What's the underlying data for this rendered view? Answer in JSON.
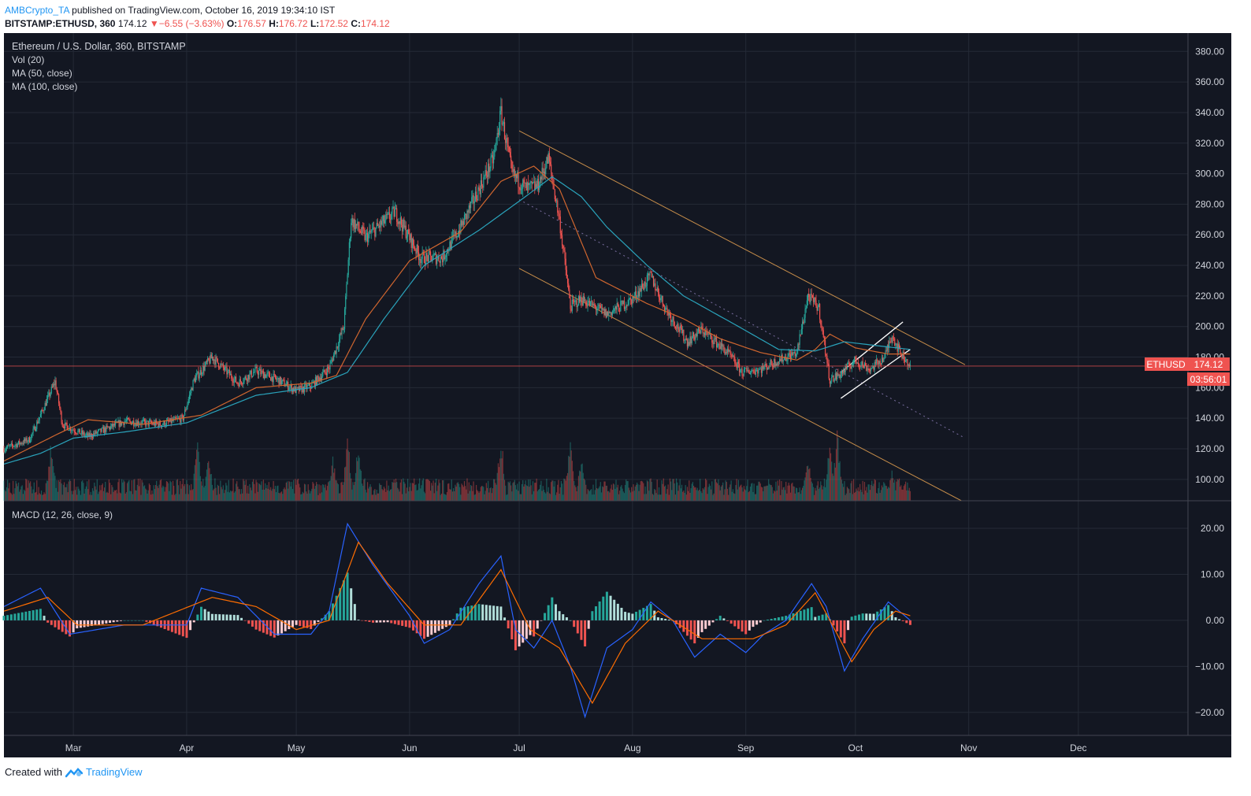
{
  "header": {
    "author": "AMBCrypto_TA",
    "published_text": "published on TradingView.com, October 16, 2019 19:34:10 IST",
    "symbol": "BITSTAMP:ETHUSD, 360",
    "last": "174.12",
    "change_arrow": "▼",
    "change": "−6.55 (−3.63%)",
    "o_label": "O:",
    "o": "176.57",
    "h_label": "H:",
    "h": "176.72",
    "l_label": "L:",
    "l": "172.52",
    "c_label": "C:",
    "c": "174.12"
  },
  "legend": {
    "title": "Ethereum / U.S. Dollar, 360, BITSTAMP",
    "vol": "Vol (20)",
    "ma50": "MA (50, close)",
    "ma100": "MA (100, close)",
    "macd": "MACD (12, 26, close, 9)"
  },
  "price_tag": {
    "symbol": "ETHUSD",
    "price": "174.12",
    "countdown": "03:56:01"
  },
  "footer": {
    "created_with": "Created with",
    "brand": "TradingView"
  },
  "colors": {
    "background": "#131722",
    "grid": "#242a36",
    "up": "#26a69a",
    "down": "#ef5350",
    "ma50": "#d0662f",
    "ma100": "#2aa3bb",
    "channel": "#c68d4a",
    "flag": "#ffffff",
    "macd": "#2962ff",
    "signal": "#ff6d00",
    "price_line": "#ef5350",
    "axis_text": "#d1d4dc"
  },
  "chart_data": [
    {
      "type": "candlestick",
      "title": "Ethereum / U.S. Dollar, 360, BITSTAMP",
      "x_tick_labels": [
        "Mar",
        "Apr",
        "May",
        "Jun",
        "Jul",
        "Aug",
        "Sep",
        "Oct",
        "Nov",
        "Dec"
      ],
      "y_ticks": [
        "100.00",
        "120.00",
        "140.00",
        "160.00",
        "180.00",
        "200.00",
        "220.00",
        "240.00",
        "260.00",
        "280.00",
        "300.00",
        "320.00",
        "340.00",
        "360.00",
        "380.00"
      ],
      "ylim": [
        86,
        392
      ],
      "xlim": [
        "2019-02-10",
        "2019-12-31"
      ],
      "price_path": [
        [
          "2019-02-10",
          120
        ],
        [
          "2019-02-17",
          126
        ],
        [
          "2019-02-20",
          142
        ],
        [
          "2019-02-24",
          164
        ],
        [
          "2019-02-26",
          136
        ],
        [
          "2019-03-05",
          128
        ],
        [
          "2019-03-15",
          138
        ],
        [
          "2019-03-25",
          136
        ],
        [
          "2019-03-31",
          140
        ],
        [
          "2019-04-03",
          165
        ],
        [
          "2019-04-08",
          180
        ],
        [
          "2019-04-15",
          163
        ],
        [
          "2019-04-20",
          171
        ],
        [
          "2019-04-26",
          165
        ],
        [
          "2019-05-01",
          158
        ],
        [
          "2019-05-05",
          161
        ],
        [
          "2019-05-10",
          173
        ],
        [
          "2019-05-14",
          200
        ],
        [
          "2019-05-16",
          270
        ],
        [
          "2019-05-20",
          258
        ],
        [
          "2019-05-28",
          275
        ],
        [
          "2019-06-04",
          245
        ],
        [
          "2019-06-10",
          245
        ],
        [
          "2019-06-15",
          265
        ],
        [
          "2019-06-20",
          290
        ],
        [
          "2019-06-24",
          310
        ],
        [
          "2019-06-26",
          340
        ],
        [
          "2019-06-29",
          300
        ],
        [
          "2019-07-03",
          290
        ],
        [
          "2019-07-06",
          292
        ],
        [
          "2019-07-09",
          310
        ],
        [
          "2019-07-12",
          270
        ],
        [
          "2019-07-15",
          213
        ],
        [
          "2019-07-18",
          218
        ],
        [
          "2019-07-25",
          208
        ],
        [
          "2019-08-01",
          218
        ],
        [
          "2019-08-06",
          233
        ],
        [
          "2019-08-10",
          212
        ],
        [
          "2019-08-16",
          190
        ],
        [
          "2019-08-20",
          198
        ],
        [
          "2019-08-27",
          183
        ],
        [
          "2019-08-31",
          170
        ],
        [
          "2019-09-05",
          172
        ],
        [
          "2019-09-10",
          178
        ],
        [
          "2019-09-15",
          183
        ],
        [
          "2019-09-18",
          220
        ],
        [
          "2019-09-21",
          212
        ],
        [
          "2019-09-24",
          165
        ],
        [
          "2019-09-27",
          169
        ],
        [
          "2019-10-01",
          178
        ],
        [
          "2019-10-05",
          172
        ],
        [
          "2019-10-09",
          180
        ],
        [
          "2019-10-11",
          195
        ],
        [
          "2019-10-13",
          184
        ],
        [
          "2019-10-16",
          174.12
        ]
      ],
      "ma_50_path": [
        [
          "2019-02-10",
          112
        ],
        [
          "2019-02-25",
          130
        ],
        [
          "2019-03-05",
          139
        ],
        [
          "2019-03-20",
          136
        ],
        [
          "2019-04-05",
          142
        ],
        [
          "2019-04-20",
          160
        ],
        [
          "2019-05-05",
          163
        ],
        [
          "2019-05-12",
          168
        ],
        [
          "2019-05-20",
          205
        ],
        [
          "2019-06-01",
          243
        ],
        [
          "2019-06-15",
          262
        ],
        [
          "2019-06-26",
          295
        ],
        [
          "2019-07-05",
          305
        ],
        [
          "2019-07-12",
          290
        ],
        [
          "2019-07-22",
          232
        ],
        [
          "2019-08-05",
          215
        ],
        [
          "2019-08-15",
          205
        ],
        [
          "2019-08-25",
          192
        ],
        [
          "2019-09-05",
          183
        ],
        [
          "2019-09-15",
          178
        ],
        [
          "2019-09-20",
          185
        ],
        [
          "2019-09-24",
          195
        ],
        [
          "2019-10-01",
          186
        ],
        [
          "2019-10-10",
          182
        ],
        [
          "2019-10-16",
          182
        ]
      ],
      "ma_100_path": [
        [
          "2019-02-10",
          110
        ],
        [
          "2019-02-20",
          117
        ],
        [
          "2019-03-01",
          127
        ],
        [
          "2019-03-15",
          131
        ],
        [
          "2019-04-01",
          137
        ],
        [
          "2019-04-20",
          155
        ],
        [
          "2019-05-05",
          160
        ],
        [
          "2019-05-15",
          170
        ],
        [
          "2019-05-25",
          205
        ],
        [
          "2019-06-05",
          240
        ],
        [
          "2019-06-20",
          263
        ],
        [
          "2019-07-01",
          282
        ],
        [
          "2019-07-10",
          298
        ],
        [
          "2019-07-18",
          285
        ],
        [
          "2019-07-25",
          265
        ],
        [
          "2019-08-05",
          240
        ],
        [
          "2019-08-15",
          220
        ],
        [
          "2019-08-30",
          200
        ],
        [
          "2019-09-10",
          185
        ],
        [
          "2019-09-20",
          184
        ],
        [
          "2019-09-28",
          190
        ],
        [
          "2019-10-05",
          188
        ],
        [
          "2019-10-16",
          185
        ]
      ],
      "last_price": 174.12,
      "annotations": [
        {
          "kind": "channel_top",
          "from": [
            "2019-07-01",
            328
          ],
          "to": [
            "2019-10-31",
            175
          ]
        },
        {
          "kind": "channel_bottom",
          "from": [
            "2019-07-01",
            238
          ],
          "to": [
            "2019-10-30",
            86
          ]
        },
        {
          "kind": "channel_mid_dotted",
          "from": [
            "2019-07-01",
            283
          ],
          "to": [
            "2019-10-31",
            127
          ]
        },
        {
          "kind": "flag_top",
          "from": [
            "2019-09-27",
            170
          ],
          "to": [
            "2019-10-14",
            203
          ]
        },
        {
          "kind": "flag_bottom",
          "from": [
            "2019-09-27",
            153
          ],
          "to": [
            "2019-10-16",
            185
          ]
        }
      ]
    },
    {
      "type": "bar",
      "title": "Vol (20)",
      "note": "volume histogram, relative heights",
      "spikes": [
        [
          "2019-02-23",
          0.9
        ],
        [
          "2019-04-04",
          1.0
        ],
        [
          "2019-04-07",
          0.7
        ],
        [
          "2019-05-11",
          0.7
        ],
        [
          "2019-05-15",
          1.0
        ],
        [
          "2019-05-18",
          0.9
        ],
        [
          "2019-06-26",
          1.0
        ],
        [
          "2019-07-15",
          0.95
        ],
        [
          "2019-07-18",
          0.7
        ],
        [
          "2019-09-18",
          0.75
        ],
        [
          "2019-09-24",
          0.85
        ],
        [
          "2019-09-26",
          1.0
        ],
        [
          "2019-10-11",
          0.5
        ]
      ],
      "baseline": 0.25
    },
    {
      "type": "line",
      "title": "MACD (12, 26, close, 9)",
      "y_ticks": [
        "−20.00",
        "−10.00",
        "0.00",
        "10.00",
        "20.00"
      ],
      "ylim": [
        -25,
        26
      ],
      "series": [
        {
          "role": "macd",
          "values": [
            [
              "2019-02-10",
              3
            ],
            [
              "2019-02-20",
              7
            ],
            [
              "2019-02-28",
              -3
            ],
            [
              "2019-03-15",
              -1
            ],
            [
              "2019-04-01",
              -1
            ],
            [
              "2019-04-05",
              7
            ],
            [
              "2019-04-15",
              5
            ],
            [
              "2019-04-25",
              -3
            ],
            [
              "2019-05-05",
              -3
            ],
            [
              "2019-05-10",
              2
            ],
            [
              "2019-05-15",
              21
            ],
            [
              "2019-05-22",
              12
            ],
            [
              "2019-06-01",
              1
            ],
            [
              "2019-06-05",
              -5
            ],
            [
              "2019-06-12",
              -2
            ],
            [
              "2019-06-20",
              8
            ],
            [
              "2019-06-26",
              14
            ],
            [
              "2019-06-30",
              -2
            ],
            [
              "2019-07-05",
              -6
            ],
            [
              "2019-07-10",
              0
            ],
            [
              "2019-07-15",
              -10
            ],
            [
              "2019-07-19",
              -21
            ],
            [
              "2019-07-25",
              -6
            ],
            [
              "2019-08-01",
              -2
            ],
            [
              "2019-08-06",
              4
            ],
            [
              "2019-08-12",
              0
            ],
            [
              "2019-08-18",
              -8
            ],
            [
              "2019-08-25",
              -3
            ],
            [
              "2019-09-01",
              -7
            ],
            [
              "2019-09-06",
              -3
            ],
            [
              "2019-09-12",
              0
            ],
            [
              "2019-09-19",
              8
            ],
            [
              "2019-09-23",
              3
            ],
            [
              "2019-09-28",
              -11
            ],
            [
              "2019-10-03",
              -4
            ],
            [
              "2019-10-10",
              4
            ],
            [
              "2019-10-16",
              0
            ]
          ]
        },
        {
          "role": "signal",
          "values": [
            [
              "2019-02-10",
              2
            ],
            [
              "2019-02-22",
              5
            ],
            [
              "2019-03-02",
              -1
            ],
            [
              "2019-03-20",
              -1
            ],
            [
              "2019-04-08",
              5
            ],
            [
              "2019-04-20",
              3
            ],
            [
              "2019-05-01",
              -2
            ],
            [
              "2019-05-10",
              0
            ],
            [
              "2019-05-18",
              17
            ],
            [
              "2019-05-26",
              8
            ],
            [
              "2019-06-05",
              -1
            ],
            [
              "2019-06-15",
              -1
            ],
            [
              "2019-06-26",
              11
            ],
            [
              "2019-07-04",
              -2
            ],
            [
              "2019-07-12",
              -6
            ],
            [
              "2019-07-21",
              -18
            ],
            [
              "2019-07-30",
              -5
            ],
            [
              "2019-08-08",
              2
            ],
            [
              "2019-08-20",
              -4
            ],
            [
              "2019-09-03",
              -4
            ],
            [
              "2019-09-12",
              -1
            ],
            [
              "2019-09-20",
              6
            ],
            [
              "2019-09-30",
              -9
            ],
            [
              "2019-10-06",
              -2
            ],
            [
              "2019-10-12",
              2
            ],
            [
              "2019-10-16",
              1
            ]
          ]
        }
      ]
    }
  ]
}
